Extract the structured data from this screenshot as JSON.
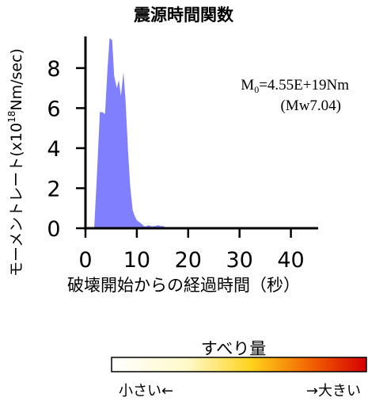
{
  "chart_data": {
    "type": "area",
    "title": "震源時間関数",
    "xlabel": "破壊開始からの経過時間（秒）",
    "ylabel": "モーメントレート(x10",
    "ylabel_sup": "18",
    "ylabel_unit": "Nm/sec)",
    "xlim": [
      0,
      45
    ],
    "ylim": [
      0,
      9.5
    ],
    "xticks": [
      0,
      10,
      20,
      30,
      40
    ],
    "yticks": [
      0,
      2,
      4,
      6,
      8
    ],
    "annotation": {
      "moment_prefix": "M",
      "moment_sub": "0",
      "moment_value": "=4.55E+19Nm",
      "magnitude": "(Mw7.04)"
    },
    "fill_color": "#8080ff",
    "series": [
      {
        "x": [
          1.7,
          2.2,
          2.8,
          3.3,
          3.8,
          4.3,
          4.7,
          5.2,
          5.6,
          6.1,
          6.5,
          6.9,
          7.4,
          7.8,
          8.3,
          8.7,
          9.2,
          9.6,
          10.0,
          10.5,
          11.0,
          11.4,
          11.8,
          12.3,
          12.8,
          13.3,
          13.7,
          14.2,
          14.7,
          15.0,
          15.6,
          16.1,
          16.6
        ],
        "values": [
          0,
          2.5,
          5.8,
          5.8,
          5.7,
          8.0,
          9.5,
          9.4,
          7.6,
          7.0,
          7.4,
          6.6,
          7.8,
          6.4,
          3.8,
          2.1,
          0.9,
          0.6,
          0.4,
          0.3,
          0.2,
          0.1,
          0.1,
          0.15,
          0.1,
          0.1,
          0.12,
          0.15,
          0.1,
          0.12,
          0.05,
          0,
          0
        ]
      }
    ]
  },
  "legend": {
    "title": "すべり量",
    "left_label": "小さい←",
    "right_label": "→大きい"
  }
}
